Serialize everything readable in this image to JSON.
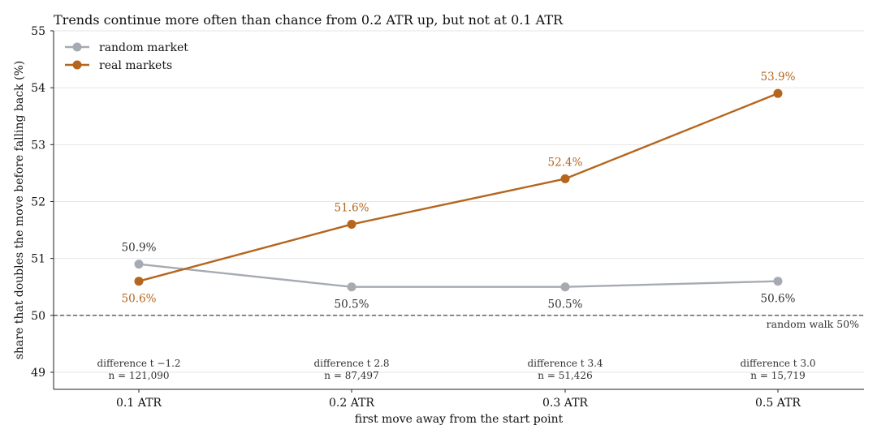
{
  "chart_data": {
    "type": "line",
    "title": "Trends continue more often than chance from 0.2 ATR up, but not at 0.1 ATR",
    "xlabel": "first move away from the start point",
    "ylabel": "share that doubles the move before falling back (%)",
    "categories": [
      "0.1 ATR",
      "0.2 ATR",
      "0.3 ATR",
      "0.5 ATR"
    ],
    "ylim": [
      48.7,
      55
    ],
    "yticks": [
      49,
      50,
      51,
      52,
      53,
      54,
      55
    ],
    "grid": "horizontal",
    "legend_position": "top-left",
    "series": [
      {
        "name": "random market",
        "color": "#a6abb3",
        "values": [
          50.9,
          50.5,
          50.5,
          50.6
        ],
        "labels": [
          "50.9%",
          "50.5%",
          "50.5%",
          "50.6%"
        ],
        "label_positions": [
          "above",
          "below",
          "below",
          "below"
        ],
        "label_color": "#333333"
      },
      {
        "name": "real markets",
        "color": "#b5651d",
        "values": [
          50.6,
          51.6,
          52.4,
          53.9
        ],
        "labels": [
          "50.6%",
          "51.6%",
          "52.4%",
          "53.9%"
        ],
        "label_positions": [
          "below",
          "above",
          "above",
          "above"
        ],
        "label_color": "#b5651d"
      }
    ],
    "reference_line": {
      "value": 50,
      "label": "random walk 50%",
      "style": "dashed",
      "color": "#333333"
    },
    "stats": [
      {
        "difference": "difference t −1.2",
        "n": "n = 121,090"
      },
      {
        "difference": "difference t 2.8",
        "n": "n = 87,497"
      },
      {
        "difference": "difference t 3.4",
        "n": "n = 51,426"
      },
      {
        "difference": "difference t 3.0",
        "n": "n = 15,719"
      }
    ]
  }
}
